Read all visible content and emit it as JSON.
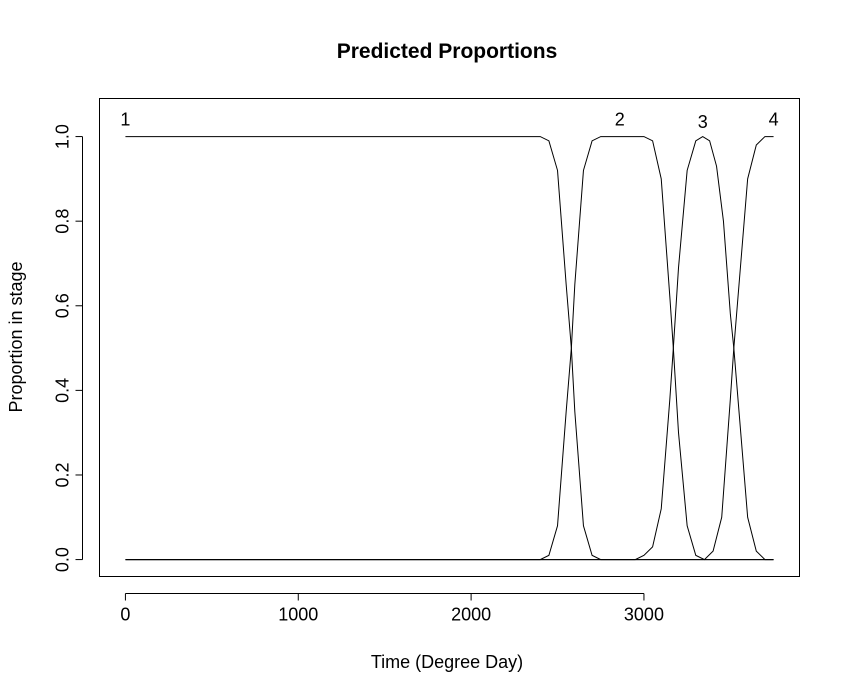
{
  "chart_data": {
    "type": "line",
    "title": "Predicted Proportions",
    "xlabel": "Time (Degree Day)",
    "ylabel": "Proportion in stage",
    "xlim": [
      -150,
      3900
    ],
    "ylim": [
      -0.04,
      1.09
    ],
    "xticks": [
      0,
      1000,
      2000,
      3000
    ],
    "xtick_labels": [
      "0",
      "1000",
      "2000",
      "3000"
    ],
    "yticks": [
      0.0,
      0.2,
      0.4,
      0.6,
      0.8,
      1.0
    ],
    "ytick_labels": [
      "0.0",
      "0.2",
      "0.4",
      "0.6",
      "0.8",
      "1.0"
    ],
    "grid": false,
    "x_range": [
      0,
      3750
    ],
    "series": [
      {
        "name": "1",
        "x": [
          0,
          2400,
          2450,
          2500,
          2550,
          2580,
          2600,
          2650,
          2700,
          2750,
          3750
        ],
        "y": [
          1.0,
          1.0,
          0.99,
          0.92,
          0.65,
          0.5,
          0.35,
          0.08,
          0.01,
          0.0,
          0.0
        ]
      },
      {
        "name": "2",
        "x": [
          0,
          2400,
          2450,
          2500,
          2550,
          2580,
          2600,
          2650,
          2700,
          2750,
          2800,
          3000,
          3050,
          3100,
          3150,
          3170,
          3200,
          3250,
          3300,
          3350,
          3750
        ],
        "y": [
          0.0,
          0.0,
          0.01,
          0.08,
          0.35,
          0.5,
          0.65,
          0.92,
          0.99,
          1.0,
          1.0,
          1.0,
          0.99,
          0.9,
          0.62,
          0.5,
          0.3,
          0.08,
          0.01,
          0.0,
          0.0
        ]
      },
      {
        "name": "3",
        "x": [
          0,
          2950,
          3000,
          3050,
          3100,
          3150,
          3170,
          3200,
          3250,
          3300,
          3340,
          3380,
          3420,
          3460,
          3500,
          3520,
          3550,
          3600,
          3650,
          3700,
          3750
        ],
        "y": [
          0.0,
          0.0,
          0.01,
          0.03,
          0.12,
          0.38,
          0.5,
          0.69,
          0.92,
          0.99,
          1.0,
          0.99,
          0.93,
          0.8,
          0.58,
          0.5,
          0.35,
          0.1,
          0.02,
          0.0,
          0.0
        ]
      },
      {
        "name": "4",
        "x": [
          0,
          3350,
          3400,
          3450,
          3500,
          3520,
          3550,
          3600,
          3650,
          3700,
          3750
        ],
        "y": [
          0.0,
          0.0,
          0.02,
          0.1,
          0.38,
          0.5,
          0.65,
          0.9,
          0.98,
          1.0,
          1.0
        ]
      }
    ],
    "annotations": [
      {
        "text": "1",
        "x": 0,
        "y": 1.04
      },
      {
        "text": "2",
        "x": 2860,
        "y": 1.04
      },
      {
        "text": "3",
        "x": 3340,
        "y": 1.035
      },
      {
        "text": "4",
        "x": 3750,
        "y": 1.04
      }
    ]
  }
}
